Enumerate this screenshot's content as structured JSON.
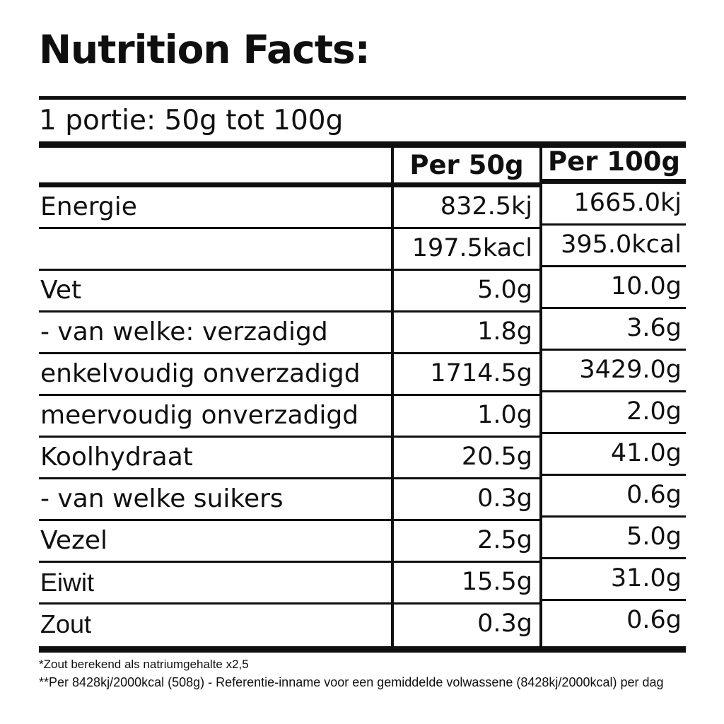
{
  "title": "Nutrition Facts:",
  "serving_line": "1 portie: 50g tot 100g",
  "table": {
    "col_headers": [
      "Per 50g",
      "Per 100g"
    ],
    "rows": [
      {
        "label": "Energie",
        "per50": "832.5kj",
        "per100": "1665.0kj"
      },
      {
        "label": "",
        "per50": "197.5kacl",
        "per100": "395.0kcal"
      },
      {
        "label": "Vet",
        "per50": "5.0g",
        "per100": "10.0g"
      },
      {
        "label": "- van welke: verzadigd",
        "per50": "1.8g",
        "per100": "3.6g"
      },
      {
        "label": "enkelvoudig onverzadigd",
        "per50": "1714.5g",
        "per100": "3429.0g"
      },
      {
        "label": "meervoudig onverzadigd",
        "per50": "1.0g",
        "per100": "2.0g"
      },
      {
        "label": "Koolhydraat",
        "per50": "20.5g",
        "per100": "41.0g"
      },
      {
        "label": "- van welke suikers",
        "per50": "0.3g",
        "per100": "0.6g"
      },
      {
        "label": "Vezel",
        "per50": "2.5g",
        "per100": "5.0g"
      },
      {
        "label": "Eiwit",
        "per50": "15.5g",
        "per100": "31.0g"
      },
      {
        "label": "Zout",
        "per50": "0.3g",
        "per100": "0.6g"
      }
    ]
  },
  "footnotes": [
    "*Zout berekend als natriumgehalte x2,5",
    "**Per 8428kj/2000kcal (508g) - Referentie-inname voor een gemiddelde volwassene (8428kj/2000kcal) per dag"
  ],
  "colors": {
    "text": "#101010",
    "line": "#0f0f0f",
    "background": "#ffffff"
  }
}
